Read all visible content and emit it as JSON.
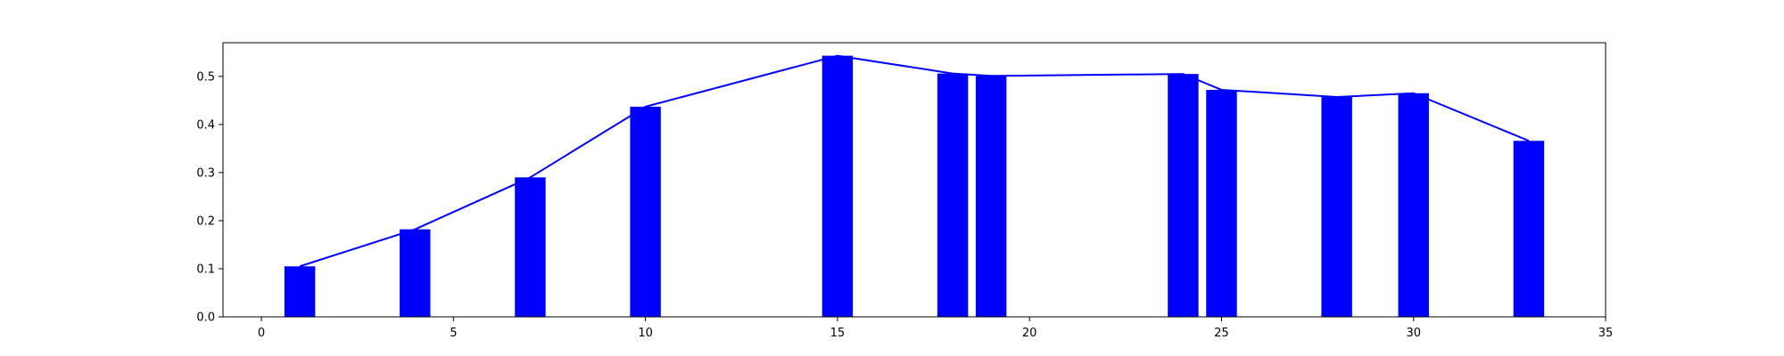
{
  "chart_data": {
    "type": "bar",
    "title": "",
    "xlabel": "",
    "ylabel": "",
    "xlim": [
      -1,
      35
    ],
    "ylim": [
      0,
      0.57
    ],
    "grid": false,
    "legend": "none",
    "bar_width": 0.8,
    "colors": {
      "bar": "#0000ff",
      "line": "#0000ff",
      "axes": "#000000"
    },
    "x_ticks": [
      0,
      5,
      10,
      15,
      20,
      25,
      30,
      35
    ],
    "x_tick_labels": [
      "0",
      "5",
      "10",
      "15",
      "20",
      "25",
      "30",
      "35"
    ],
    "y_ticks": [
      0.0,
      0.1,
      0.2,
      0.3,
      0.4,
      0.5
    ],
    "y_tick_labels": [
      "0.0",
      "0.1",
      "0.2",
      "0.3",
      "0.4",
      "0.5"
    ],
    "x": [
      1,
      4,
      7,
      10,
      15,
      18,
      19,
      24,
      25,
      28,
      30,
      33
    ],
    "series": [
      {
        "kind": "bar",
        "values": [
          0.105,
          0.182,
          0.29,
          0.437,
          0.543,
          0.506,
          0.501,
          0.505,
          0.472,
          0.457,
          0.465,
          0.366
        ]
      },
      {
        "kind": "line",
        "values": [
          0.105,
          0.182,
          0.29,
          0.437,
          0.543,
          0.506,
          0.501,
          0.505,
          0.472,
          0.457,
          0.465,
          0.366
        ]
      }
    ]
  }
}
